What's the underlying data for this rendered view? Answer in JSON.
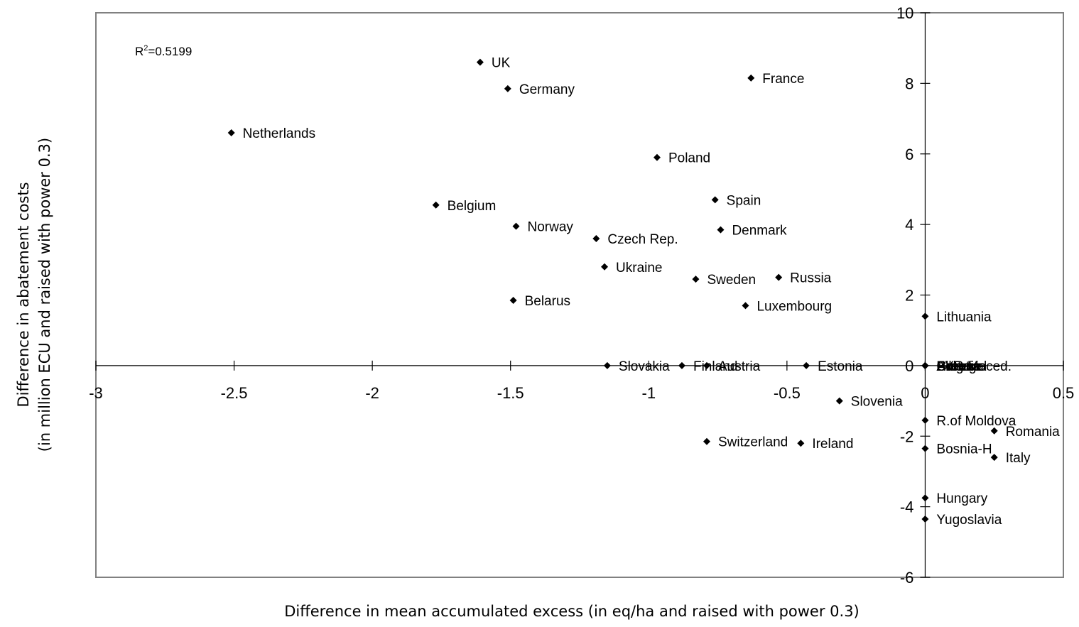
{
  "chart_data": {
    "type": "scatter",
    "xlabel": "Difference in mean accumulated excess (in eq/ha and raised with power 0.3)",
    "ylabel_lines": [
      "Difference in abatement costs",
      "(in million ECU and raised with power 0.3)"
    ],
    "annotation": {
      "prefix": "R",
      "sup": "2",
      "text": "=0.5199"
    },
    "xlim": [
      -3,
      0.5
    ],
    "ylim": [
      -6,
      10
    ],
    "x_ticks": [
      -3,
      -2.5,
      -2,
      -1.5,
      -1,
      -0.5,
      0,
      0.5
    ],
    "y_ticks": [
      -6,
      -4,
      -2,
      0,
      2,
      4,
      6,
      8,
      10
    ],
    "x_tick_labels": [
      "-3",
      "-2.5",
      "-2",
      "-1.5",
      "-1",
      "-0.5",
      "0",
      "0.5"
    ],
    "y_tick_labels": [
      "-6",
      "-4",
      "-2",
      "0",
      "2",
      "4",
      "6",
      "8",
      "10"
    ],
    "grid": false,
    "marker_color": "#000000",
    "points": [
      {
        "label": "UK",
        "x": -1.61,
        "y": 8.6
      },
      {
        "label": "Germany",
        "x": -1.51,
        "y": 7.85
      },
      {
        "label": "France",
        "x": -0.63,
        "y": 8.15
      },
      {
        "label": "Netherlands",
        "x": -2.51,
        "y": 6.6
      },
      {
        "label": "Poland",
        "x": -0.97,
        "y": 5.9
      },
      {
        "label": "Spain",
        "x": -0.76,
        "y": 4.7
      },
      {
        "label": "Belgium",
        "x": -1.77,
        "y": 4.55
      },
      {
        "label": "Norway",
        "x": -1.48,
        "y": 3.95
      },
      {
        "label": "Denmark",
        "x": -0.74,
        "y": 3.85
      },
      {
        "label": "Czech Rep.",
        "x": -1.19,
        "y": 3.6
      },
      {
        "label": "Ukraine",
        "x": -1.16,
        "y": 2.8
      },
      {
        "label": "Russia",
        "x": -0.53,
        "y": 2.5
      },
      {
        "label": "Sweden",
        "x": -0.83,
        "y": 2.45
      },
      {
        "label": "Belarus",
        "x": -1.49,
        "y": 1.85
      },
      {
        "label": "Luxembourg",
        "x": -0.65,
        "y": 1.7
      },
      {
        "label": "Lithuania",
        "x": 0.0,
        "y": 1.4
      },
      {
        "label": "Slovakia",
        "x": -1.15,
        "y": 0.0
      },
      {
        "label": "Finland",
        "x": -0.88,
        "y": 0.0
      },
      {
        "label": "Austria",
        "x": -0.79,
        "y": 0.0
      },
      {
        "label": "Estonia",
        "x": -0.43,
        "y": 0.0
      },
      {
        "label": "Albania",
        "x": 0.0,
        "y": 0.0
      },
      {
        "label": "Bulgaria",
        "x": 0.0,
        "y": 0.0
      },
      {
        "label": "Croatia",
        "x": 0.0,
        "y": 0.0
      },
      {
        "label": "Greece",
        "x": 0.0,
        "y": 0.0
      },
      {
        "label": "Portugal",
        "x": 0.0,
        "y": 0.0
      },
      {
        "label": "FYR Maced.",
        "x": 0.0,
        "y": 0.0
      },
      {
        "label": "Slovenia",
        "x": -0.31,
        "y": -1.0
      },
      {
        "label": "R.of Moldova",
        "x": 0.0,
        "y": -1.55
      },
      {
        "label": "Romania",
        "x": 0.25,
        "y": -1.85
      },
      {
        "label": "Switzerland",
        "x": -0.79,
        "y": -2.15
      },
      {
        "label": "Ireland",
        "x": -0.45,
        "y": -2.2
      },
      {
        "label": "Bosnia-H",
        "x": 0.0,
        "y": -2.35
      },
      {
        "label": "Italy",
        "x": 0.25,
        "y": -2.6
      },
      {
        "label": "Hungary",
        "x": 0.0,
        "y": -3.75
      },
      {
        "label": "Yugoslavia",
        "x": 0.0,
        "y": -4.35
      }
    ]
  }
}
